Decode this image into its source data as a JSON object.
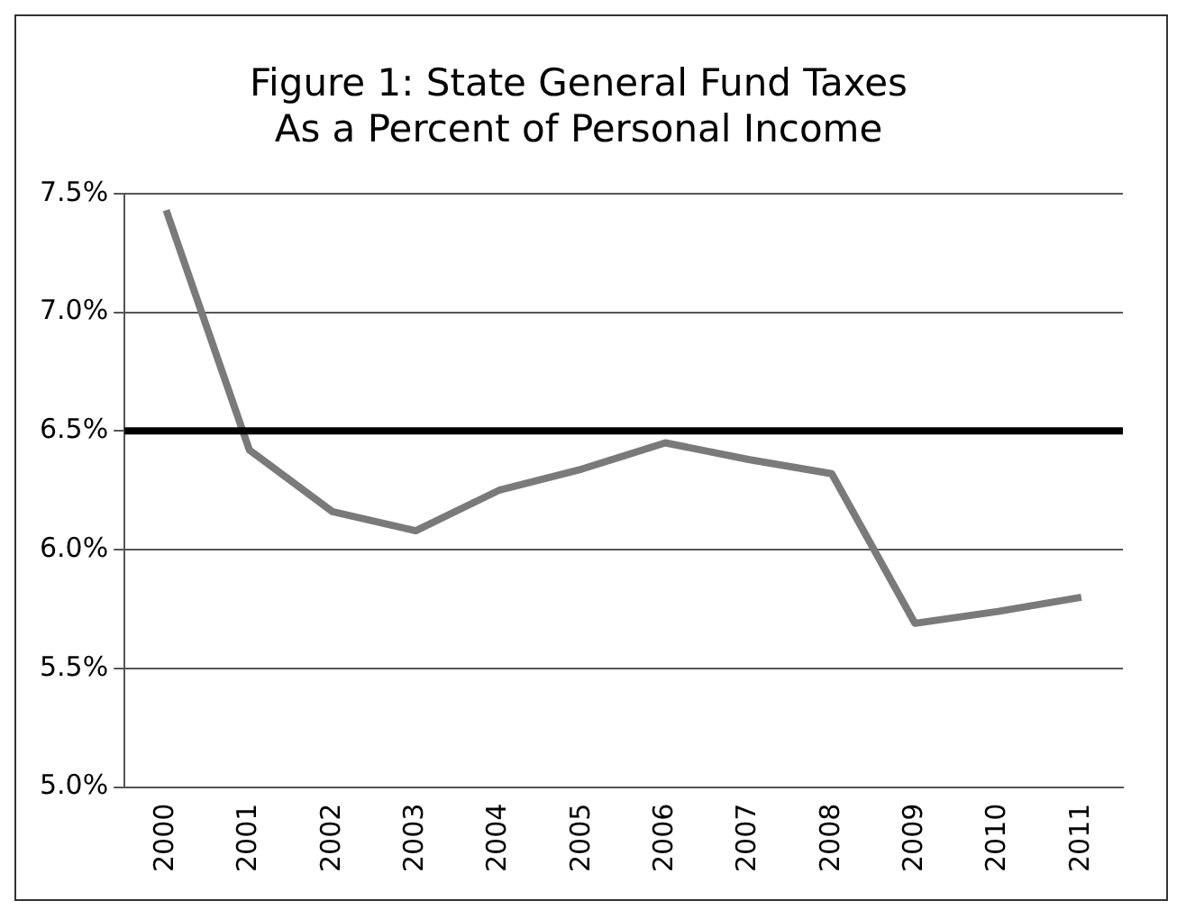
{
  "chart_data": {
    "type": "line",
    "title": [
      "Figure 1: State General Fund Taxes",
      "As a Percent of Personal Income"
    ],
    "categories": [
      "2000",
      "2001",
      "2002",
      "2003",
      "2004",
      "2005",
      "2006",
      "2007",
      "2008",
      "2009",
      "2010",
      "2011"
    ],
    "series": [
      {
        "color": "#7a7a7a",
        "values": [
          7.43,
          6.42,
          6.16,
          6.08,
          6.25,
          6.34,
          6.45,
          6.38,
          6.32,
          5.69,
          5.74,
          5.8
        ]
      }
    ],
    "ylim": [
      5.0,
      7.5
    ],
    "yticks": [
      {
        "value": 5.0,
        "label": "5.0%"
      },
      {
        "value": 5.5,
        "label": "5.5%"
      },
      {
        "value": 6.0,
        "label": "6.0%"
      },
      {
        "value": 6.5,
        "label": "6.5%"
      },
      {
        "value": 7.0,
        "label": "7.0%"
      },
      {
        "value": 7.5,
        "label": "7.5%"
      }
    ],
    "ref_lines": [
      {
        "axis": "y",
        "value": 6.5,
        "color": "#000000"
      }
    ],
    "grid": "y",
    "legend": false,
    "marker": "none"
  }
}
